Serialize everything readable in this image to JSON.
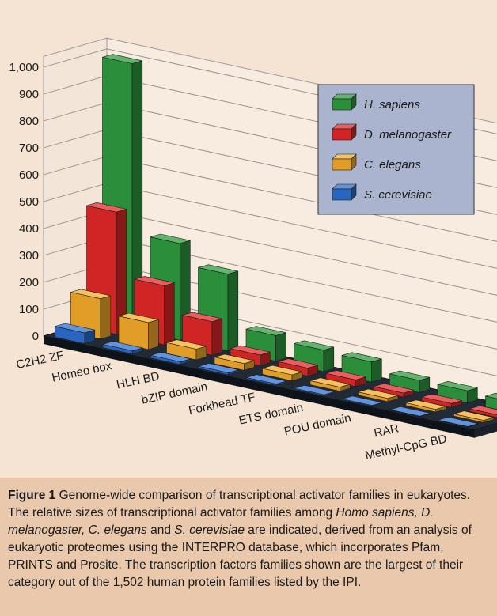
{
  "chart_data": {
    "type": "bar",
    "title": "",
    "xlabel": "",
    "ylabel": "",
    "ylim": [
      0,
      1000
    ],
    "y_ticks": [
      "0",
      "100",
      "200",
      "300",
      "400",
      "500",
      "600",
      "700",
      "800",
      "900",
      "1,000"
    ],
    "grid": true,
    "legend_position": "top-right",
    "categories": [
      "C2H2 ZF",
      "Homeo box",
      "HLH BD",
      "bZIP domain",
      "Forkhead TF",
      "ETS domain",
      "POU domain",
      "RAR",
      "Methyl-CpG BD"
    ],
    "series": [
      {
        "name": "H. sapiens",
        "color": "#2f9a3f",
        "values": [
          990,
          360,
          285,
          95,
          80,
          75,
          45,
          45,
          40
        ]
      },
      {
        "name": "D. melanogaster",
        "color": "#e22828",
        "values": [
          455,
          220,
          125,
          40,
          30,
          25,
          15,
          15,
          10
        ]
      },
      {
        "name": "C. elegans",
        "color": "#f4ac2c",
        "values": [
          150,
          100,
          40,
          25,
          22,
          15,
          12,
          10,
          8
        ]
      },
      {
        "name": "S. cerevisiae",
        "color": "#2d6fd1",
        "values": [
          40,
          12,
          10,
          8,
          5,
          4,
          3,
          2,
          2
        ]
      }
    ]
  },
  "caption": {
    "fig_label": "Figure 1",
    "t1": " Genome-wide comparison of transcriptional activator families in eukaryotes. The relative sizes of transcriptional activator families among ",
    "i1": "Homo sapiens, D. melanogaster, C. elegans",
    "t2": " and ",
    "i2": "S. cerevisiae",
    "t3": " are indicated, derived from an analysis of eukaryotic proteomes using the INTERPRO database, which incorporates Pfam, PRINTS and Prosite. The transcription factors families shown are the largest of their category out of the 1,502 human protein families listed by the IPI."
  }
}
